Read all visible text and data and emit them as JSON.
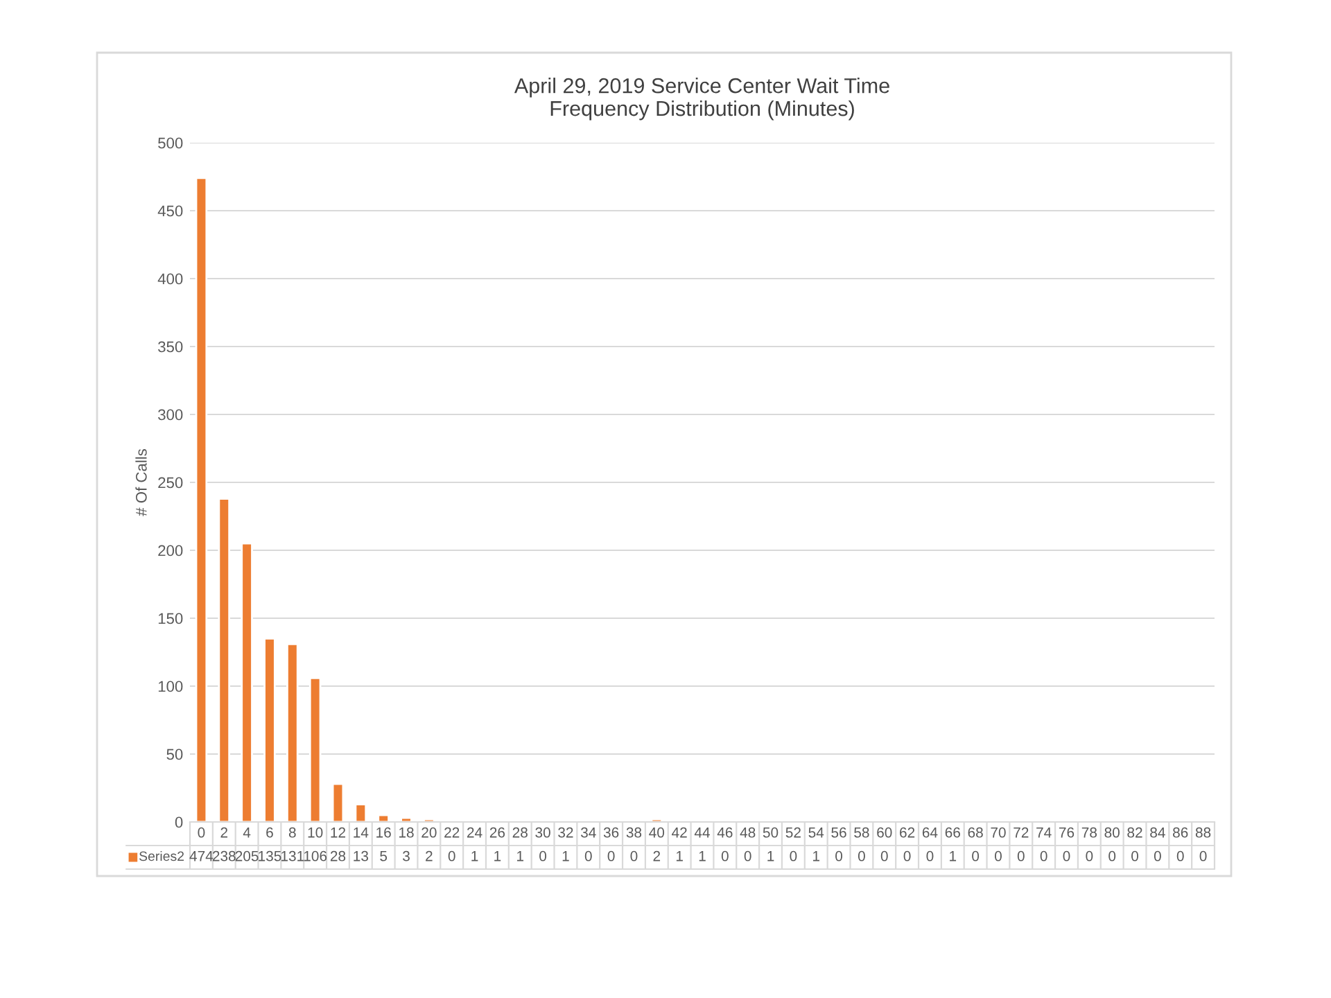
{
  "chart_data": {
    "type": "bar",
    "title": "April 29, 2019 Service Center Wait Time\nFrequency Distribution (Minutes)",
    "ylabel": "# Of Calls",
    "categories": [
      "0",
      "2",
      "4",
      "6",
      "8",
      "10",
      "12",
      "14",
      "16",
      "18",
      "20",
      "22",
      "24",
      "26",
      "28",
      "30",
      "32",
      "34",
      "36",
      "38",
      "40",
      "42",
      "44",
      "46",
      "48",
      "50",
      "52",
      "54",
      "56",
      "58",
      "60",
      "62",
      "64",
      "66",
      "68",
      "70",
      "72",
      "74",
      "76",
      "78",
      "80",
      "82",
      "84",
      "86",
      "88"
    ],
    "series": [
      {
        "name": "Series2",
        "color": "#ed7d31",
        "values": [
          474,
          238,
          205,
          135,
          131,
          106,
          28,
          13,
          5,
          3,
          2,
          0,
          1,
          1,
          1,
          0,
          1,
          0,
          0,
          0,
          2,
          1,
          1,
          0,
          0,
          1,
          0,
          1,
          0,
          0,
          0,
          0,
          0,
          1,
          0,
          0,
          0,
          0,
          0,
          0,
          0,
          0,
          0,
          0,
          0
        ]
      }
    ],
    "ylim": [
      0,
      500
    ],
    "yticks": [
      0,
      50,
      100,
      150,
      200,
      250,
      300,
      350,
      400,
      450,
      500
    ],
    "grid": "y",
    "data_labels": true,
    "legend": "bottom"
  }
}
